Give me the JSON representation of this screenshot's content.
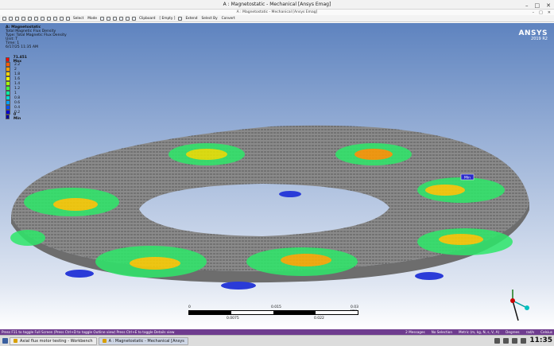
{
  "window": {
    "title": "A : Magnetostatic - Mechanical [Ansys Emag]"
  },
  "subwindow": {
    "title": "A : Magnetostatic - Mechanical [Ansys Emag]"
  },
  "toolbar": {
    "select_label": "Select",
    "mode_label": "Mode",
    "clipboard_label": "Clipboard",
    "empty_label": "[ Empty ]",
    "extend_label": "Extend",
    "select_by_label": "Select By",
    "convert_label": "Convert"
  },
  "info": {
    "analysis": "A: Magnetostatic",
    "result": "Total Magnetic Flux Density",
    "type": "Type: Total Magnetic Flux Density",
    "unit": "Unit: T",
    "time": "Time: 1",
    "date": "6/17/25 11:35 AM"
  },
  "legend": {
    "max": "71.451 Max",
    "min": "0 Min",
    "levels": [
      "2.2",
      "2",
      "1.8",
      "1.6",
      "1.4",
      "1.2",
      "1",
      "0.8",
      "0.6",
      "0.4",
      "0.2"
    ],
    "colors": [
      "#ff0000",
      "#ff5a00",
      "#ffa000",
      "#ffd500",
      "#f0ff00",
      "#a8ff00",
      "#40ff40",
      "#00f0a0",
      "#00d8d8",
      "#00a0ff",
      "#0050ff",
      "#0000d0",
      "#0000a0"
    ]
  },
  "probe": {
    "label": "Min"
  },
  "logo": {
    "brand": "ANSYS",
    "version": "2019 R2"
  },
  "scale": {
    "t0": "0",
    "t1": "0.015",
    "t2": "0.03 (m)",
    "b1": "0.0075",
    "b2": "0.022"
  },
  "statusbar": {
    "hint": "Press F11 to toggle Full Screen (Press Ctrl+D to toggle Outline view) Press Ctrl+E to toggle Details view",
    "messages": "2 Messages",
    "selection": "No Selection",
    "units": "Metric (m, kg, N, s, V, A)",
    "angle": "Degrees",
    "rate": "rad/s",
    "temp": "Celsius"
  },
  "taskbar": {
    "task1": "Axial flux motor testing - Workbench",
    "task2": "A : Magnetostatic - Mechanical [Ansys",
    "clock": "11:35"
  }
}
